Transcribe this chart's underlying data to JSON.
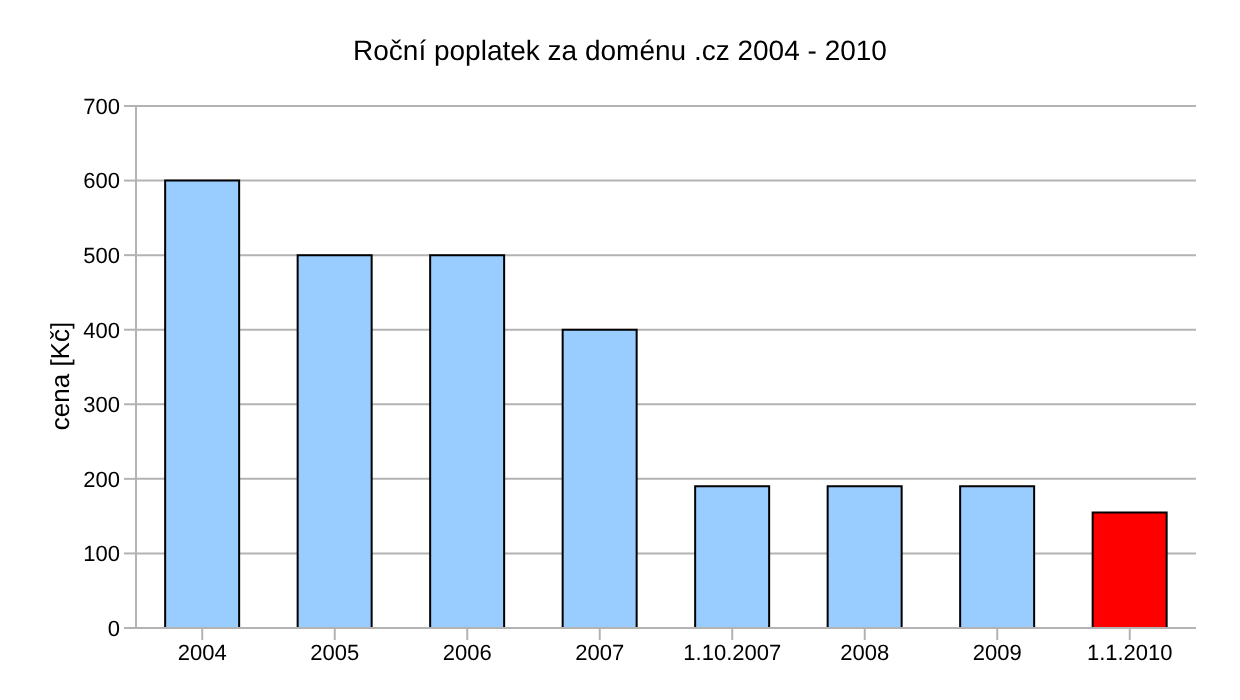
{
  "chart_data": {
    "type": "bar",
    "title": "Roční poplatek za doménu .cz 2004 - 2010",
    "ylabel": "cena [Kč]",
    "categories": [
      "2004",
      "2005",
      "2006",
      "2007",
      "1.10.2007",
      "2008",
      "2009",
      "1.1.2010"
    ],
    "values": [
      600,
      500,
      500,
      400,
      190,
      190,
      190,
      155
    ],
    "colors": [
      "#99ccff",
      "#99ccff",
      "#99ccff",
      "#99ccff",
      "#99ccff",
      "#99ccff",
      "#99ccff",
      "#ff0000"
    ],
    "ylim": [
      0,
      700
    ],
    "yticks": [
      0,
      100,
      200,
      300,
      400,
      500,
      600,
      700
    ],
    "grid": "y"
  }
}
